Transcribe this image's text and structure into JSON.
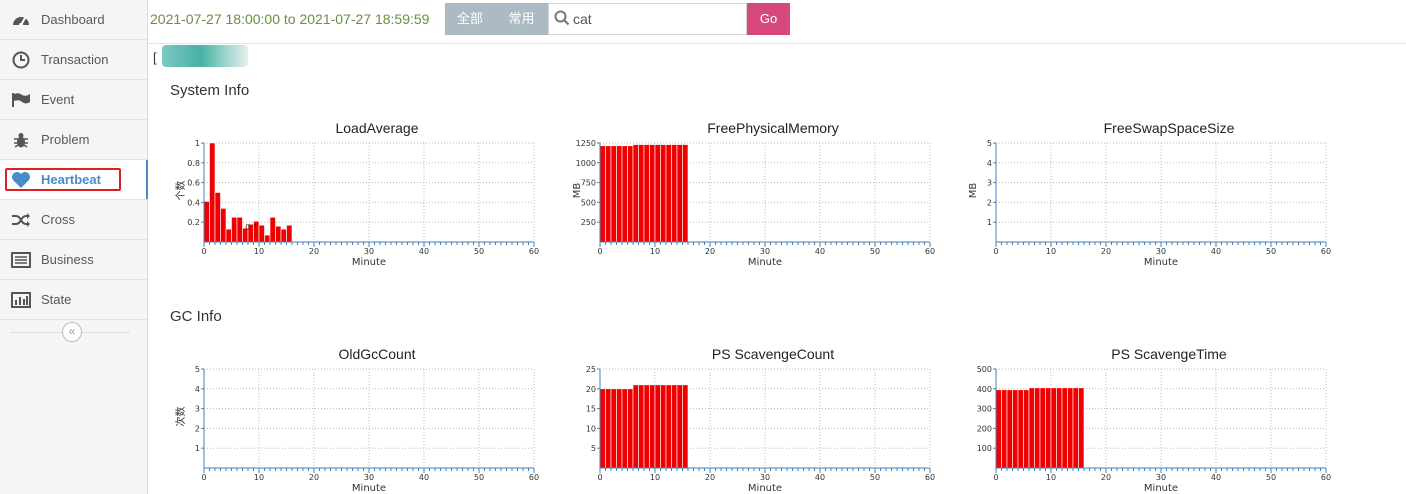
{
  "sidebar": {
    "items": [
      {
        "label": "Dashboard",
        "icon": "dashboard-icon"
      },
      {
        "label": "Transaction",
        "icon": "clock-icon"
      },
      {
        "label": "Event",
        "icon": "flag-icon"
      },
      {
        "label": "Problem",
        "icon": "bug-icon"
      },
      {
        "label": "Heartbeat",
        "icon": "heart-icon",
        "active": true
      },
      {
        "label": "Cross",
        "icon": "shuffle-icon"
      },
      {
        "label": "Business",
        "icon": "list-icon"
      },
      {
        "label": "State",
        "icon": "bar-chart-icon"
      }
    ],
    "collapse_glyph": "«"
  },
  "topbar": {
    "time_range": "2021-07-27 18:00:00 to 2021-07-27 18:59:59",
    "btn_all": "全部",
    "btn_common": "常用",
    "search_value": "cat",
    "go_label": "Go"
  },
  "host_bracket": "[",
  "sections": {
    "system_info": "System Info",
    "gc_info": "GC Info"
  },
  "colors": {
    "bar": "#f00000",
    "axis": "#4682b4",
    "accent": "#4b8ac8",
    "go": "#d6487e"
  },
  "chart_data": [
    {
      "id": "load-average",
      "type": "bar",
      "title": "LoadAverage",
      "xlabel": "Minute",
      "ylabel": "个数",
      "xlim": [
        0,
        60
      ],
      "ylim": [
        0,
        1
      ],
      "yticks": [
        0.2,
        0.4,
        0.6,
        0.8,
        1
      ],
      "ytick_labels": [
        "0.2",
        "0.4",
        "0.6",
        "0.8",
        "1"
      ],
      "xticks": [
        0,
        10,
        20,
        30,
        40,
        50,
        60
      ],
      "values": [
        0.41,
        1.0,
        0.5,
        0.34,
        0.13,
        0.25,
        0.25,
        0.14,
        0.18,
        0.21,
        0.17,
        0.07,
        0.25,
        0.16,
        0.13,
        0.17
      ],
      "annotation": {
        "text": "0.1",
        "x": 7.5,
        "y": 0.1
      }
    },
    {
      "id": "free-physical-memory",
      "type": "bar",
      "title": "FreePhysicalMemory",
      "xlabel": "Minute",
      "ylabel": "MB",
      "xlim": [
        0,
        60
      ],
      "ylim": [
        0,
        1250
      ],
      "yticks": [
        250,
        500,
        750,
        1000,
        1250
      ],
      "ytick_labels": [
        "250",
        "500",
        "750",
        "1000",
        "1250"
      ],
      "xticks": [
        0,
        10,
        20,
        30,
        40,
        50,
        60
      ],
      "values": [
        1215,
        1215,
        1215,
        1215,
        1215,
        1215,
        1230,
        1230,
        1230,
        1230,
        1230,
        1230,
        1230,
        1230,
        1230,
        1230
      ]
    },
    {
      "id": "free-swap-space-size",
      "type": "bar",
      "title": "FreeSwapSpaceSize",
      "xlabel": "Minute",
      "ylabel": "MB",
      "xlim": [
        0,
        60
      ],
      "ylim": [
        0,
        5
      ],
      "yticks": [
        1,
        2,
        3,
        4,
        5
      ],
      "ytick_labels": [
        "1",
        "2",
        "3",
        "4",
        "5"
      ],
      "xticks": [
        0,
        10,
        20,
        30,
        40,
        50,
        60
      ],
      "values": []
    },
    {
      "id": "old-gc-count",
      "type": "bar",
      "title": "OldGcCount",
      "xlabel": "Minute",
      "ylabel": "次数",
      "xlim": [
        0,
        60
      ],
      "ylim": [
        0,
        5
      ],
      "yticks": [
        1,
        2,
        3,
        4,
        5
      ],
      "ytick_labels": [
        "1",
        "2",
        "3",
        "4",
        "5"
      ],
      "xticks": [
        0,
        10,
        20,
        30,
        40,
        50,
        60
      ],
      "values": []
    },
    {
      "id": "ps-scavenge-count",
      "type": "bar",
      "title": "PS ScavengeCount",
      "xlabel": "Minute",
      "ylabel": "",
      "xlim": [
        0,
        60
      ],
      "ylim": [
        0,
        25
      ],
      "yticks": [
        5,
        10,
        15,
        20,
        25
      ],
      "ytick_labels": [
        "5",
        "10",
        "15",
        "20",
        "25"
      ],
      "xticks": [
        0,
        10,
        20,
        30,
        40,
        50,
        60
      ],
      "values": [
        20,
        20,
        20,
        20,
        20,
        20,
        21,
        21,
        21,
        21,
        21,
        21,
        21,
        21,
        21,
        21
      ]
    },
    {
      "id": "ps-scavenge-time",
      "type": "bar",
      "title": "PS ScavengeTime",
      "xlabel": "Minute",
      "ylabel": "",
      "xlim": [
        0,
        60
      ],
      "ylim": [
        0,
        500
      ],
      "yticks": [
        100,
        200,
        300,
        400,
        500
      ],
      "ytick_labels": [
        "100",
        "200",
        "300",
        "400",
        "500"
      ],
      "xticks": [
        0,
        10,
        20,
        30,
        40,
        50,
        60
      ],
      "values": [
        395,
        395,
        395,
        395,
        395,
        395,
        405,
        405,
        405,
        405,
        405,
        405,
        405,
        405,
        405,
        405
      ]
    }
  ]
}
